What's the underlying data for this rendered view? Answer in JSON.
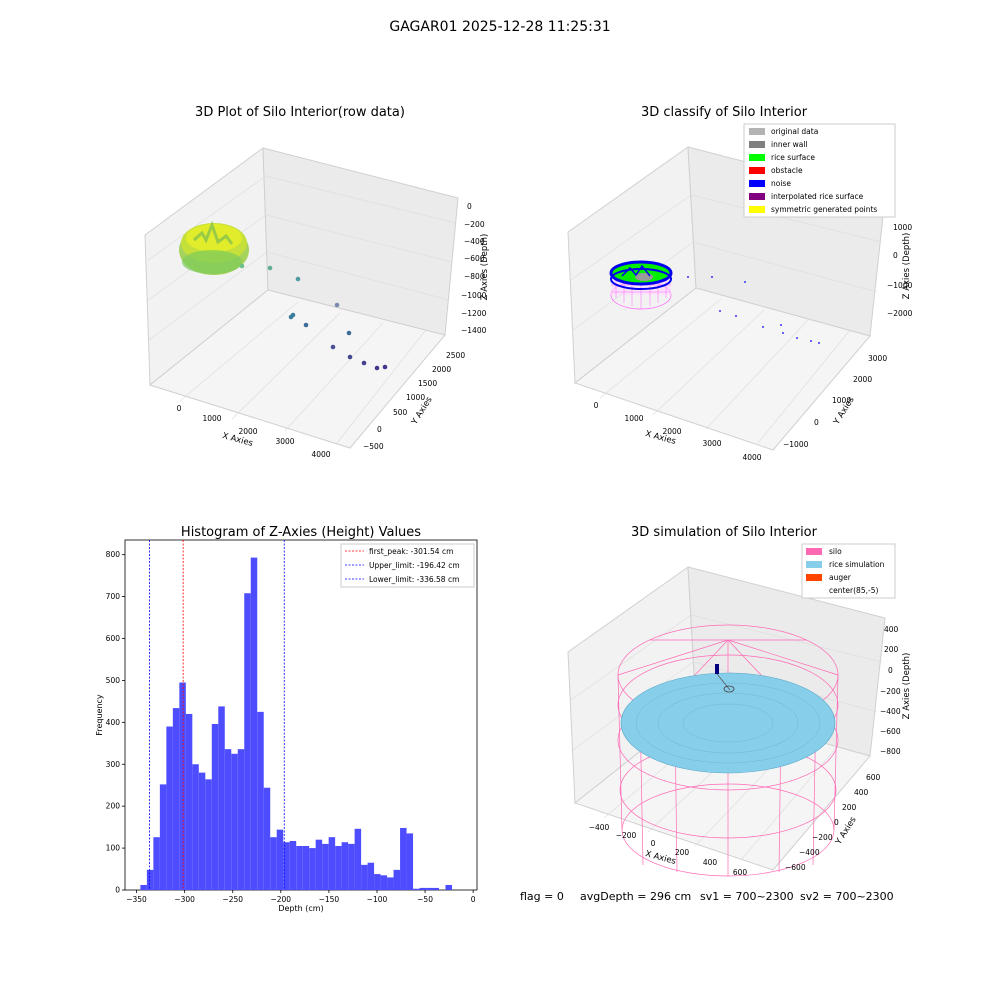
{
  "figure": {
    "suptitle": "GAGAR01 2025-12-28 11:25:31",
    "footer": {
      "flag": "flag = 0",
      "avg": "avgDepth = 296 cm",
      "sv1": "sv1 = 700~2300",
      "sv2": "sv2 = 700~2300"
    }
  },
  "chart_data": [
    {
      "type": "scatter3d",
      "title": "3D Plot of Silo Interior(row data)",
      "xlabel": "X Axies",
      "ylabel": "Y Axies",
      "zlabel": "Z Axies (Depth)",
      "xticks": [
        "0",
        "1000",
        "2000",
        "3000",
        "4000"
      ],
      "yticks": [
        "−500",
        "0",
        "500",
        "1000",
        "1500",
        "2000",
        "2500"
      ],
      "zticks": [
        "0",
        "−200",
        "−400",
        "−600",
        "−800",
        "−1000",
        "−1200",
        "−1400"
      ]
    },
    {
      "type": "scatter3d",
      "title": "3D classify of Silo Interior",
      "xlabel": "X Axies",
      "ylabel": "Y Axies",
      "zlabel": "Z Axies (Depth)",
      "xticks": [
        "0",
        "1000",
        "2000",
        "3000",
        "4000"
      ],
      "yticks": [
        "−1000",
        "0",
        "1000",
        "2000",
        "3000"
      ],
      "zticks": [
        "1000",
        "0",
        "−1000",
        "−2000"
      ],
      "legend_position": "top-right",
      "legend": [
        {
          "label": "original data",
          "color": "#b3b3b3"
        },
        {
          "label": "inner wall",
          "color": "#808080"
        },
        {
          "label": "rice surface",
          "color": "#00ff00"
        },
        {
          "label": "obstacle",
          "color": "#ff0000"
        },
        {
          "label": "noise",
          "color": "#0000ff"
        },
        {
          "label": "interpolated rice surface",
          "color": "#800080"
        },
        {
          "label": "symmetric generated points",
          "color": "#ffff00"
        }
      ]
    },
    {
      "type": "bar",
      "title": "Histogram of Z-Axies (Height) Values",
      "xlabel": "Depth (cm)",
      "ylabel": "Frequency",
      "xlim": [
        -362,
        4
      ],
      "ylim": [
        0,
        835
      ],
      "xticks": [
        -350,
        -300,
        -250,
        -200,
        -150,
        -100,
        -50,
        0
      ],
      "xtick_labels": [
        "−350",
        "−300",
        "−250",
        "−200",
        "−150",
        "−100",
        "−50",
        "0"
      ],
      "yticks": [
        0,
        100,
        200,
        300,
        400,
        500,
        600,
        700,
        800
      ],
      "bar_color": "#4d4dff",
      "bin_width": 6.75,
      "bin_start": -346,
      "values": [
        12,
        48,
        126,
        252,
        390,
        434,
        495,
        420,
        300,
        280,
        264,
        396,
        438,
        336,
        325,
        336,
        708,
        793,
        425,
        244,
        126,
        144,
        114,
        117,
        105,
        105,
        100,
        120,
        110,
        126,
        105,
        114,
        110,
        146,
        60,
        65,
        38,
        35,
        30,
        48,
        148,
        135,
        3,
        5,
        5,
        5,
        0,
        12
      ],
      "lines": [
        {
          "label": "first_peak: -301.54 cm",
          "x": -301.54,
          "color": "#ff0000"
        },
        {
          "label": "Upper_limit: -196.42 cm",
          "x": -196.42,
          "color": "#0000ff"
        },
        {
          "label": "Lower_limit: -336.58 cm",
          "x": -336.58,
          "color": "#0000ff"
        }
      ],
      "legend_position": "top-right"
    },
    {
      "type": "surface3d",
      "title": "3D simulation of Silo Interior",
      "xlabel": "X Axies",
      "ylabel": "Y Axies",
      "zlabel": "Z Axies (Depth)",
      "xticks": [
        "−400",
        "−200",
        "0",
        "200",
        "400",
        "600"
      ],
      "yticks": [
        "−600",
        "−400",
        "−200",
        "0",
        "200",
        "400",
        "600"
      ],
      "zticks": [
        "400",
        "200",
        "0",
        "−200",
        "−400",
        "−600",
        "−800"
      ],
      "legend_position": "top-right",
      "legend": [
        {
          "label": "silo",
          "color": "#ff69b4"
        },
        {
          "label": "rice simulation",
          "color": "#87ceeb"
        },
        {
          "label": "auger",
          "color": "#ff4500"
        },
        {
          "label": "center(85,-5)",
          "color": ""
        }
      ]
    }
  ]
}
